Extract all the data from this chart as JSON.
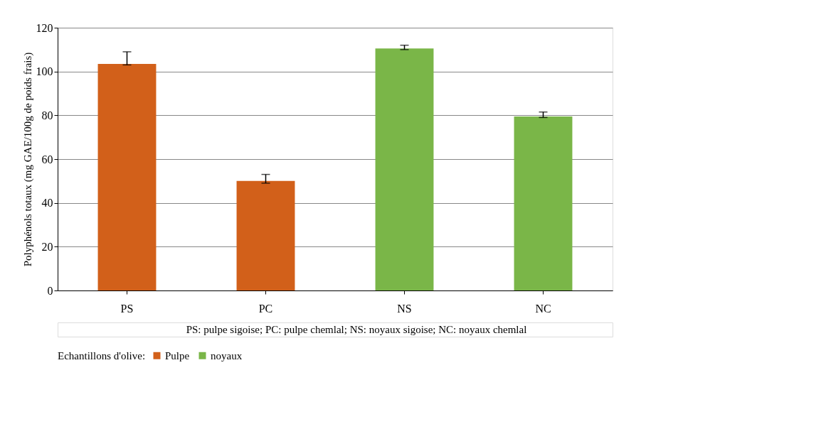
{
  "chart_data": {
    "type": "bar",
    "ylabel": "Polyphénols totaux (mg GAE/100g de poids frais)",
    "categories": [
      "PS",
      "PC",
      "NS",
      "NC"
    ],
    "series": [
      {
        "name": "Pulpe",
        "color": "#d2601a",
        "values": [
          103.5,
          50,
          null,
          null
        ],
        "errors": [
          [
            103,
            109
          ],
          [
            49,
            53
          ],
          null,
          null
        ]
      },
      {
        "name": "noyaux",
        "color": "#7ab648",
        "values": [
          null,
          null,
          110.5,
          79.5
        ],
        "errors": [
          null,
          null,
          [
            110,
            112
          ],
          [
            79,
            81.5
          ]
        ]
      }
    ],
    "legend_title": "Echantillons  d'olive:",
    "legend": "bottom",
    "ylim": [
      0,
      120
    ],
    "yticks": [
      0,
      20,
      40,
      60,
      80,
      100,
      120
    ],
    "grid": "y",
    "annotations": [
      "PS: pulpe sigoise; PC: pulpe chemlal; NS: noyaux sigoise; NC: noyaux chemlal"
    ]
  }
}
